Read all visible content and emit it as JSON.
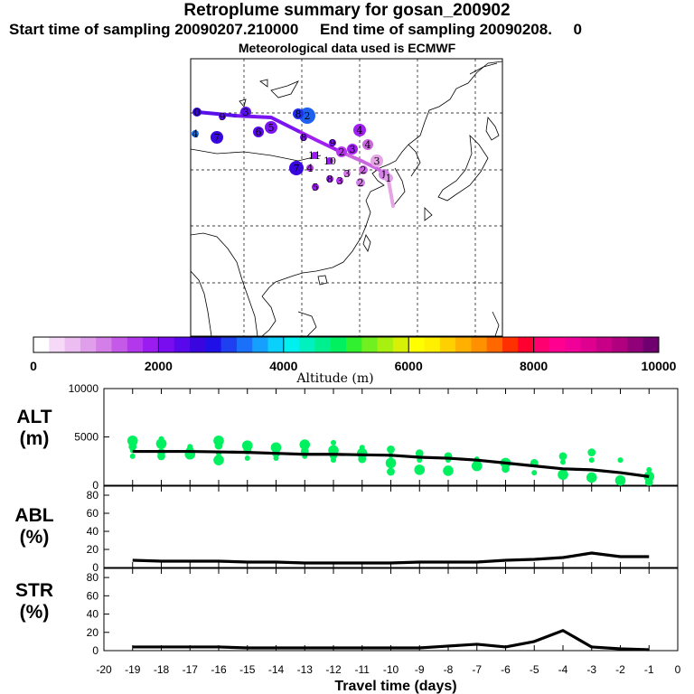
{
  "header": {
    "title": "Retroplume summary for gosan_200902",
    "subtitle": "Start time of sampling 20090207.210000     End time of sampling 20090208.     0",
    "met_line": "Meteorological data used is ECMWF"
  },
  "map": {
    "trajectory_colors": [
      "#e6a3e6",
      "#cc66e0",
      "#a020f0",
      "#7a14f0",
      "#5a10e8"
    ],
    "labels": [
      "0",
      "1",
      "2",
      "3",
      "4",
      "5",
      "6",
      "7",
      "8",
      "9",
      "10",
      "11",
      "12"
    ]
  },
  "colorbar": {
    "colors": [
      "#ffffff",
      "#f5d9f7",
      "#ebbdf0",
      "#e09fea",
      "#d47ee8",
      "#c65ae8",
      "#b338ec",
      "#9a1cf0",
      "#7a0cf0",
      "#5808ea",
      "#3a06e0",
      "#2010e8",
      "#1e40f0",
      "#1a70f8",
      "#14a0fc",
      "#0cd0fc",
      "#00f0f0",
      "#00f0c0",
      "#00f090",
      "#00f060",
      "#30f030",
      "#70f020",
      "#a8f010",
      "#d8f008",
      "#ffff00",
      "#fff000",
      "#ffd000",
      "#ffb000",
      "#ff9000",
      "#ff6800",
      "#ff3000",
      "#ff0030",
      "#ff0070",
      "#ff0090",
      "#f00098",
      "#e00090",
      "#c80088",
      "#b00080",
      "#900078",
      "#700070"
    ],
    "tick_labels": [
      "0",
      "2000",
      "4000",
      "6000",
      "8000",
      "10000"
    ],
    "label": "Altitude (m)"
  },
  "chart_data": [
    {
      "type": "line",
      "id": "altitude",
      "ylabel": "ALT (m)",
      "ylabel_lines": [
        "ALT",
        "(m)"
      ],
      "ylim": [
        0,
        10000
      ],
      "yticks": [
        "0",
        "5000",
        "10000"
      ],
      "x": [
        -19,
        -18,
        -17,
        -16,
        -15,
        -14,
        -13,
        -12,
        -11,
        -10,
        -9,
        -8,
        -7,
        -6,
        -5,
        -4,
        -3,
        -2,
        -1
      ],
      "mean": [
        3500,
        3500,
        3500,
        3450,
        3400,
        3300,
        3200,
        3200,
        3150,
        3100,
        2900,
        2800,
        2600,
        2300,
        2000,
        1700,
        1600,
        1300,
        900
      ],
      "scatter": [
        [
          -19,
          3000
        ],
        [
          -19,
          4000
        ],
        [
          -19,
          4600
        ],
        [
          -19,
          3600
        ],
        [
          -18,
          3400
        ],
        [
          -18,
          4300
        ],
        [
          -18,
          4800
        ],
        [
          -18,
          3000
        ],
        [
          -17,
          3200
        ],
        [
          -17,
          4000
        ],
        [
          -17,
          3600
        ],
        [
          -16,
          2600
        ],
        [
          -16,
          3300
        ],
        [
          -16,
          4100
        ],
        [
          -16,
          4600
        ],
        [
          -15,
          2800
        ],
        [
          -15,
          3600
        ],
        [
          -15,
          4100
        ],
        [
          -14,
          2800
        ],
        [
          -14,
          3300
        ],
        [
          -14,
          3900
        ],
        [
          -13,
          3000
        ],
        [
          -13,
          3500
        ],
        [
          -13,
          4200
        ],
        [
          -12,
          2600
        ],
        [
          -12,
          3100
        ],
        [
          -12,
          3600
        ],
        [
          -12,
          4400
        ],
        [
          -11,
          2700
        ],
        [
          -11,
          3300
        ],
        [
          -11,
          3900
        ],
        [
          -10,
          1400
        ],
        [
          -10,
          2300
        ],
        [
          -10,
          3100
        ],
        [
          -10,
          3700
        ],
        [
          -9,
          1600
        ],
        [
          -9,
          2600
        ],
        [
          -9,
          3300
        ],
        [
          -8,
          1500
        ],
        [
          -8,
          2600
        ],
        [
          -8,
          3000
        ],
        [
          -7,
          2000
        ],
        [
          -7,
          2700
        ],
        [
          -6,
          1700
        ],
        [
          -6,
          2300
        ],
        [
          -5,
          1300
        ],
        [
          -5,
          2300
        ],
        [
          -4,
          1100
        ],
        [
          -4,
          2400
        ],
        [
          -4,
          3000
        ],
        [
          -3,
          800
        ],
        [
          -3,
          2600
        ],
        [
          -3,
          3400
        ],
        [
          -2,
          500
        ],
        [
          -2,
          2600
        ],
        [
          -1,
          300
        ],
        [
          -1,
          900
        ],
        [
          -1,
          1600
        ]
      ],
      "series_color": "#00f060"
    },
    {
      "type": "line",
      "id": "abl",
      "ylabel": "ABL (%)",
      "ylabel_lines": [
        "ABL",
        "(%)"
      ],
      "ylim": [
        0,
        90
      ],
      "yticks": [
        "0",
        "20",
        "40",
        "60",
        "80"
      ],
      "x": [
        -19,
        -18,
        -17,
        -16,
        -15,
        -14,
        -13,
        -12,
        -11,
        -10,
        -9,
        -8,
        -7,
        -6,
        -5,
        -4,
        -3,
        -2,
        -1
      ],
      "values": [
        8,
        7,
        7,
        7,
        6,
        6,
        5,
        5,
        5,
        5,
        6,
        6,
        6,
        8,
        9,
        11,
        16,
        12,
        12
      ]
    },
    {
      "type": "line",
      "id": "str",
      "ylabel": "STR (%)",
      "ylabel_lines": [
        "STR",
        "(%)"
      ],
      "ylim": [
        0,
        90
      ],
      "yticks": [
        "0",
        "20",
        "40",
        "60",
        "80"
      ],
      "x": [
        -19,
        -18,
        -17,
        -16,
        -15,
        -14,
        -13,
        -12,
        -11,
        -10,
        -9,
        -8,
        -7,
        -6,
        -5,
        -4,
        -3,
        -2,
        -1
      ],
      "values": [
        4,
        4,
        4,
        4,
        3,
        3,
        3,
        3,
        3,
        3,
        3,
        5,
        7,
        4,
        10,
        22,
        4,
        2,
        1
      ]
    }
  ],
  "x_axis": {
    "ticks": [
      "-20",
      "-19",
      "-18",
      "-17",
      "-16",
      "-15",
      "-14",
      "-13",
      "-12",
      "-11",
      "-10",
      "-9",
      "-8",
      "-7",
      "-6",
      "-5",
      "-4",
      "-3",
      "-2",
      "-1",
      "0"
    ],
    "xlim": [
      -20,
      0
    ],
    "label": "Travel time (days)"
  }
}
